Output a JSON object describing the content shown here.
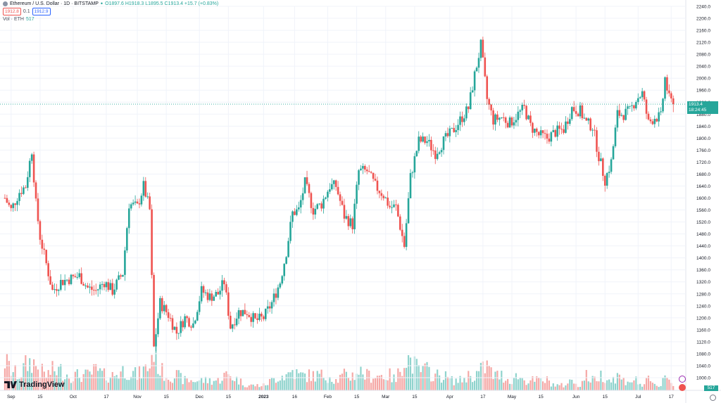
{
  "symbol": {
    "title": "Ethereum / U.S. Dollar · 1D · BITSTAMP",
    "ohlc": "O1897.6 H1918.3 L1895.5 C1913.4 +15.7 (+0.83%)",
    "sell_price": "1912.8",
    "spread": "0.1",
    "buy_price": "1912.9",
    "vol_label": "Vol · ETH",
    "vol_value": "517"
  },
  "last_price": {
    "price": "1913.4",
    "countdown": "18:24:45"
  },
  "volume_tag": "517",
  "logo_text": "TradingView",
  "colors": {
    "up": "#26a69a",
    "down": "#ef5350",
    "grid": "#f0f3fa",
    "axis_text": "#131722"
  },
  "icons": {
    "symbol": "ethereum-icon",
    "lightning": "lightning-icon",
    "flag": "flag-icon",
    "settings": "gear-icon"
  },
  "chart_data": {
    "type": "candlestick",
    "title": "Ethereum / U.S. Dollar · 1D · BITSTAMP",
    "x_tick_labels": [
      "Sep",
      "15",
      "Oct",
      "17",
      "Nov",
      "15",
      "Dec",
      "15",
      "2023",
      "16",
      "Feb",
      "15",
      "Mar",
      "15",
      "Apr",
      "17",
      "May",
      "15",
      "Jun",
      "15",
      "Jul",
      "17"
    ],
    "y_tick_labels": [
      "2240.0",
      "2200.0",
      "2160.0",
      "2120.0",
      "2080.0",
      "2040.0",
      "2000.0",
      "1960.0",
      "1920.0",
      "1880.0",
      "1840.0",
      "1800.0",
      "1760.0",
      "1720.0",
      "1680.0",
      "1640.0",
      "1600.0",
      "1560.0",
      "1520.0",
      "1480.0",
      "1440.0",
      "1400.0",
      "1360.0",
      "1320.0",
      "1280.0",
      "1240.0",
      "1200.0",
      "1160.0",
      "1120.0",
      "1080.0",
      "1040.0",
      "1000.0"
    ],
    "ylim": [
      1000,
      2240
    ],
    "last_close": 1913.4,
    "close_series": [
      [
        "2022-08-29",
        1600
      ],
      [
        "2022-09-01",
        1560
      ],
      [
        "2022-09-05",
        1620
      ],
      [
        "2022-09-08",
        1640
      ],
      [
        "2022-09-11",
        1760
      ],
      [
        "2022-09-13",
        1580
      ],
      [
        "2022-09-15",
        1470
      ],
      [
        "2022-09-18",
        1380
      ],
      [
        "2022-09-21",
        1290
      ],
      [
        "2022-09-25",
        1320
      ],
      [
        "2022-09-29",
        1330
      ],
      [
        "2022-10-04",
        1340
      ],
      [
        "2022-10-08",
        1300
      ],
      [
        "2022-10-12",
        1290
      ],
      [
        "2022-10-16",
        1320
      ],
      [
        "2022-10-20",
        1290
      ],
      [
        "2022-10-25",
        1350
      ],
      [
        "2022-10-28",
        1580
      ],
      [
        "2022-11-01",
        1570
      ],
      [
        "2022-11-04",
        1640
      ],
      [
        "2022-11-07",
        1560
      ],
      [
        "2022-11-09",
        1100
      ],
      [
        "2022-11-12",
        1250
      ],
      [
        "2022-11-16",
        1210
      ],
      [
        "2022-11-20",
        1150
      ],
      [
        "2022-11-24",
        1200
      ],
      [
        "2022-11-28",
        1180
      ],
      [
        "2022-12-02",
        1290
      ],
      [
        "2022-12-06",
        1270
      ],
      [
        "2022-12-10",
        1280
      ],
      [
        "2022-12-13",
        1320
      ],
      [
        "2022-12-16",
        1170
      ],
      [
        "2022-12-20",
        1220
      ],
      [
        "2022-12-24",
        1220
      ],
      [
        "2022-12-28",
        1190
      ],
      [
        "2023-01-01",
        1200
      ],
      [
        "2023-01-05",
        1250
      ],
      [
        "2023-01-09",
        1320
      ],
      [
        "2023-01-12",
        1420
      ],
      [
        "2023-01-15",
        1550
      ],
      [
        "2023-01-18",
        1560
      ],
      [
        "2023-01-21",
        1650
      ],
      [
        "2023-01-25",
        1560
      ],
      [
        "2023-01-29",
        1580
      ],
      [
        "2023-02-02",
        1640
      ],
      [
        "2023-02-05",
        1640
      ],
      [
        "2023-02-09",
        1540
      ],
      [
        "2023-02-13",
        1510
      ],
      [
        "2023-02-16",
        1690
      ],
      [
        "2023-02-20",
        1690
      ],
      [
        "2023-02-24",
        1640
      ],
      [
        "2023-02-28",
        1610
      ],
      [
        "2023-03-03",
        1570
      ],
      [
        "2023-03-06",
        1570
      ],
      [
        "2023-03-10",
        1440
      ],
      [
        "2023-03-13",
        1670
      ],
      [
        "2023-03-17",
        1790
      ],
      [
        "2023-03-21",
        1790
      ],
      [
        "2023-03-25",
        1750
      ],
      [
        "2023-03-29",
        1790
      ],
      [
        "2023-04-02",
        1820
      ],
      [
        "2023-04-06",
        1860
      ],
      [
        "2023-04-10",
        1900
      ],
      [
        "2023-04-13",
        2010
      ],
      [
        "2023-04-16",
        2110
      ],
      [
        "2023-04-19",
        1930
      ],
      [
        "2023-04-22",
        1860
      ],
      [
        "2023-04-26",
        1870
      ],
      [
        "2023-04-30",
        1850
      ],
      [
        "2023-05-04",
        1880
      ],
      [
        "2023-05-07",
        1900
      ],
      [
        "2023-05-10",
        1840
      ],
      [
        "2023-05-14",
        1810
      ],
      [
        "2023-05-18",
        1800
      ],
      [
        "2023-05-22",
        1820
      ],
      [
        "2023-05-26",
        1830
      ],
      [
        "2023-05-30",
        1900
      ],
      [
        "2023-06-03",
        1890
      ],
      [
        "2023-06-06",
        1850
      ],
      [
        "2023-06-09",
        1840
      ],
      [
        "2023-06-12",
        1740
      ],
      [
        "2023-06-15",
        1660
      ],
      [
        "2023-06-18",
        1720
      ],
      [
        "2023-06-21",
        1880
      ],
      [
        "2023-06-24",
        1880
      ],
      [
        "2023-06-27",
        1890
      ],
      [
        "2023-06-30",
        1930
      ],
      [
        "2023-07-03",
        1950
      ],
      [
        "2023-07-06",
        1850
      ],
      [
        "2023-07-09",
        1870
      ],
      [
        "2023-07-12",
        1870
      ],
      [
        "2023-07-14",
        2000
      ],
      [
        "2023-07-16",
        1930
      ],
      [
        "2023-07-18",
        1913.4
      ]
    ],
    "volume_series": [
      [
        "2022-08-29",
        6
      ],
      [
        "2022-09-01",
        4
      ],
      [
        "2022-09-05",
        3
      ],
      [
        "2022-09-08",
        5
      ],
      [
        "2022-09-11",
        6
      ],
      [
        "2022-09-13",
        5
      ],
      [
        "2022-09-15",
        4
      ],
      [
        "2022-09-18",
        3
      ],
      [
        "2022-09-21",
        4
      ],
      [
        "2022-09-25",
        4
      ],
      [
        "2022-09-29",
        3
      ],
      [
        "2022-10-04",
        3
      ],
      [
        "2022-10-08",
        3
      ],
      [
        "2022-10-12",
        4
      ],
      [
        "2022-10-16",
        3
      ],
      [
        "2022-10-20",
        3
      ],
      [
        "2022-10-25",
        4
      ],
      [
        "2022-10-28",
        4
      ],
      [
        "2022-11-01",
        3
      ],
      [
        "2022-11-04",
        4
      ],
      [
        "2022-11-07",
        5
      ],
      [
        "2022-11-09",
        9
      ],
      [
        "2022-11-12",
        4
      ],
      [
        "2022-11-16",
        3
      ],
      [
        "2022-11-20",
        3
      ],
      [
        "2022-11-24",
        2
      ],
      [
        "2022-11-28",
        2
      ],
      [
        "2022-12-02",
        2
      ],
      [
        "2022-12-06",
        2
      ],
      [
        "2022-12-10",
        2
      ],
      [
        "2022-12-13",
        3
      ],
      [
        "2022-12-16",
        3
      ],
      [
        "2022-12-20",
        2
      ],
      [
        "2022-12-24",
        1
      ],
      [
        "2022-12-28",
        1
      ],
      [
        "2023-01-01",
        1
      ],
      [
        "2023-01-05",
        2
      ],
      [
        "2023-01-09",
        3
      ],
      [
        "2023-01-12",
        3
      ],
      [
        "2023-01-15",
        4
      ],
      [
        "2023-01-18",
        3
      ],
      [
        "2023-01-21",
        3
      ],
      [
        "2023-01-25",
        3
      ],
      [
        "2023-01-29",
        3
      ],
      [
        "2023-02-02",
        3
      ],
      [
        "2023-02-05",
        2
      ],
      [
        "2023-02-09",
        3
      ],
      [
        "2023-02-13",
        3
      ],
      [
        "2023-02-16",
        4
      ],
      [
        "2023-02-20",
        3
      ],
      [
        "2023-02-24",
        3
      ],
      [
        "2023-02-28",
        3
      ],
      [
        "2023-03-03",
        3
      ],
      [
        "2023-03-06",
        2
      ],
      [
        "2023-03-10",
        7
      ],
      [
        "2023-03-13",
        6
      ],
      [
        "2023-03-17",
        4
      ],
      [
        "2023-03-21",
        4
      ],
      [
        "2023-03-25",
        3
      ],
      [
        "2023-03-29",
        3
      ],
      [
        "2023-04-02",
        2
      ],
      [
        "2023-04-06",
        2
      ],
      [
        "2023-04-10",
        3
      ],
      [
        "2023-04-13",
        3
      ],
      [
        "2023-04-16",
        4
      ],
      [
        "2023-04-19",
        5
      ],
      [
        "2023-04-22",
        3
      ],
      [
        "2023-04-26",
        3
      ],
      [
        "2023-04-30",
        2
      ],
      [
        "2023-05-04",
        3
      ],
      [
        "2023-05-07",
        2
      ],
      [
        "2023-05-10",
        2
      ],
      [
        "2023-05-14",
        2
      ],
      [
        "2023-05-18",
        2
      ],
      [
        "2023-05-22",
        1
      ],
      [
        "2023-05-26",
        1
      ],
      [
        "2023-05-30",
        2
      ],
      [
        "2023-06-03",
        1
      ],
      [
        "2023-06-06",
        3
      ],
      [
        "2023-06-09",
        2
      ],
      [
        "2023-06-12",
        3
      ],
      [
        "2023-06-15",
        3
      ],
      [
        "2023-06-18",
        2
      ],
      [
        "2023-06-21",
        3
      ],
      [
        "2023-06-24",
        2
      ],
      [
        "2023-06-27",
        2
      ],
      [
        "2023-06-30",
        2
      ],
      [
        "2023-07-03",
        1
      ],
      [
        "2023-07-06",
        2
      ],
      [
        "2023-07-09",
        1
      ],
      [
        "2023-07-12",
        1
      ],
      [
        "2023-07-14",
        4
      ],
      [
        "2023-07-16",
        2
      ],
      [
        "2023-07-18",
        1
      ]
    ]
  }
}
